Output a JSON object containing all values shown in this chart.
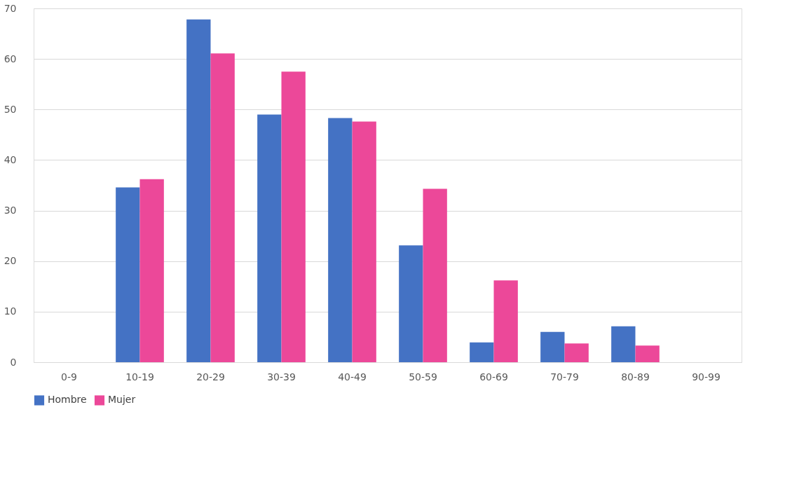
{
  "chart_data": {
    "type": "bar",
    "categories": [
      "0-9",
      "10-19",
      "20-29",
      "30-39",
      "40-49",
      "50-59",
      "60-69",
      "70-79",
      "80-89",
      "90-99"
    ],
    "series": [
      {
        "name": "Hombre",
        "color": "#4472c4",
        "values": [
          0,
          34.6,
          67.8,
          49.0,
          48.3,
          23.1,
          3.9,
          6.0,
          7.1,
          0
        ]
      },
      {
        "name": "Mujer",
        "color": "#ec4899",
        "values": [
          0,
          36.2,
          61.1,
          57.5,
          47.6,
          34.3,
          16.2,
          3.7,
          3.3,
          0
        ]
      }
    ],
    "ylim": [
      0,
      70
    ],
    "yticks": [
      0,
      10,
      20,
      30,
      40,
      50,
      60,
      70
    ],
    "grid": "y",
    "legend": "bottom"
  }
}
